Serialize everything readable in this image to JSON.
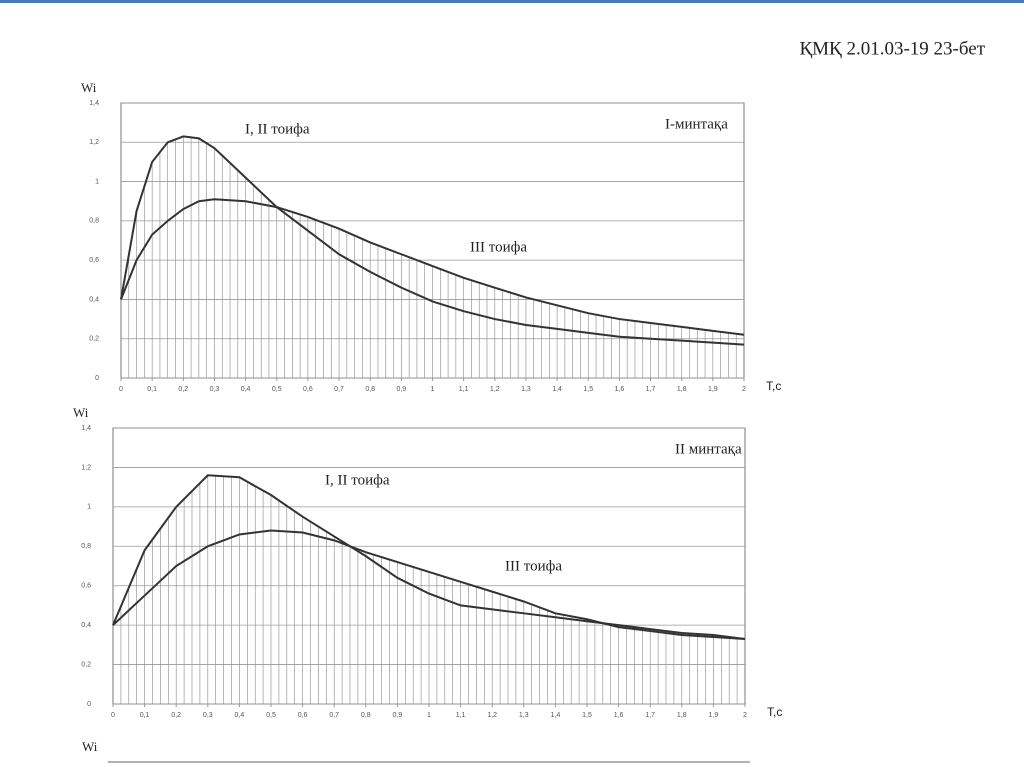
{
  "header": "ҚМҚ 2.01.03-19 23-бет",
  "next_chart_label": "Wi",
  "chart_data": [
    {
      "type": "line",
      "y_label": "Wi",
      "x_label": "T,c",
      "annotations": [
        "I, II тоифа",
        "III тоифа",
        "I-минтақа"
      ],
      "x": [
        0,
        0.05,
        0.1,
        0.15,
        0.2,
        0.25,
        0.3,
        0.4,
        0.5,
        0.6,
        0.7,
        0.8,
        0.9,
        1.0,
        1.1,
        1.2,
        1.3,
        1.4,
        1.5,
        1.6,
        1.7,
        1.8,
        1.9,
        2.0
      ],
      "series": [
        {
          "name": "I, II тоифа",
          "color": "#333333",
          "values": [
            0.4,
            0.85,
            1.1,
            1.2,
            1.23,
            1.22,
            1.17,
            1.02,
            0.87,
            0.75,
            0.63,
            0.54,
            0.46,
            0.39,
            0.34,
            0.3,
            0.27,
            0.25,
            0.23,
            0.21,
            0.2,
            0.19,
            0.18,
            0.17
          ]
        },
        {
          "name": "III тоифа",
          "color": "#333333",
          "values": [
            0.4,
            0.6,
            0.73,
            0.8,
            0.86,
            0.9,
            0.91,
            0.9,
            0.87,
            0.82,
            0.76,
            0.69,
            0.63,
            0.57,
            0.51,
            0.46,
            0.41,
            0.37,
            0.33,
            0.3,
            0.28,
            0.26,
            0.24,
            0.22
          ]
        }
      ],
      "xlim": [
        0,
        2
      ],
      "xticks": [
        0,
        {
          "value": 0.1,
          "label": "0,1"
        },
        {
          "value": 0.2,
          "label": "0,2"
        },
        {
          "value": 0.3,
          "label": "0,3"
        },
        {
          "value": 0.4,
          "label": "0,4"
        },
        {
          "value": 0.5,
          "label": "0,5"
        },
        {
          "value": 0.6,
          "label": "0,6"
        },
        {
          "value": 0.7,
          "label": "0,7"
        },
        {
          "value": 0.8,
          "label": "0,8"
        },
        {
          "value": 0.9,
          "label": "0,9"
        },
        1,
        {
          "value": 1.1,
          "label": "1,1"
        },
        {
          "value": 1.2,
          "label": "1,2"
        },
        {
          "value": 1.3,
          "label": "1,3"
        },
        {
          "value": 1.4,
          "label": "1,4"
        },
        {
          "value": 1.5,
          "label": "1,5"
        },
        {
          "value": 1.6,
          "label": "1,6"
        },
        {
          "value": 1.7,
          "label": "1,7"
        },
        {
          "value": 1.8,
          "label": "1,8"
        },
        {
          "value": 1.9,
          "label": "1,9"
        },
        2
      ],
      "ylim": [
        0,
        1.4
      ],
      "yticks": [
        0,
        {
          "value": 0.2,
          "label": "0,2"
        },
        {
          "value": 0.4,
          "label": "0,4"
        },
        {
          "value": 0.6,
          "label": "0,6"
        },
        {
          "value": 0.8,
          "label": "0,8"
        },
        1,
        {
          "value": 1.2,
          "label": "1,2"
        },
        {
          "value": 1.4,
          "label": "1,4"
        }
      ],
      "grid": true
    },
    {
      "type": "line",
      "y_label": "Wi",
      "x_label": "T,c",
      "annotations": [
        "I, II тоифа",
        "III тоифа",
        "II минтақа"
      ],
      "x": [
        0,
        0.1,
        0.2,
        0.3,
        0.4,
        0.5,
        0.6,
        0.7,
        0.8,
        0.9,
        1.0,
        1.1,
        1.2,
        1.3,
        1.4,
        1.5,
        1.6,
        1.7,
        1.8,
        1.9,
        2.0
      ],
      "series": [
        {
          "name": "I, II тоифа",
          "color": "#333333",
          "values": [
            0.4,
            0.78,
            1.0,
            1.16,
            1.15,
            1.06,
            0.95,
            0.85,
            0.75,
            0.64,
            0.56,
            0.5,
            0.48,
            0.46,
            0.44,
            0.42,
            0.4,
            0.38,
            0.36,
            0.35,
            0.33
          ]
        },
        {
          "name": "III тоифа",
          "color": "#333333",
          "values": [
            0.4,
            0.55,
            0.7,
            0.8,
            0.86,
            0.88,
            0.87,
            0.83,
            0.77,
            0.72,
            0.67,
            0.62,
            0.57,
            0.52,
            0.46,
            0.43,
            0.39,
            0.37,
            0.35,
            0.34,
            0.33
          ]
        }
      ],
      "xlim": [
        0,
        2
      ],
      "xticks": [
        0,
        {
          "value": 0.1,
          "label": "0,1"
        },
        {
          "value": 0.2,
          "label": "0,2"
        },
        {
          "value": 0.3,
          "label": "0,3"
        },
        {
          "value": 0.4,
          "label": "0,4"
        },
        {
          "value": 0.5,
          "label": "0,5"
        },
        {
          "value": 0.6,
          "label": "0,6"
        },
        {
          "value": 0.7,
          "label": "0,7"
        },
        {
          "value": 0.8,
          "label": "0,8"
        },
        {
          "value": 0.9,
          "label": "0,9"
        },
        1,
        {
          "value": 1.1,
          "label": "1,1"
        },
        {
          "value": 1.2,
          "label": "1,2"
        },
        {
          "value": 1.3,
          "label": "1,3"
        },
        {
          "value": 1.4,
          "label": "1,4"
        },
        {
          "value": 1.5,
          "label": "1,5"
        },
        {
          "value": 1.6,
          "label": "1,6"
        },
        {
          "value": 1.7,
          "label": "1,7"
        },
        {
          "value": 1.8,
          "label": "1,8"
        },
        {
          "value": 1.9,
          "label": "1,9"
        },
        2
      ],
      "ylim": [
        0,
        1.4
      ],
      "yticks": [
        0,
        {
          "value": 0.2,
          "label": "0,2"
        },
        {
          "value": 0.4,
          "label": "0,4"
        },
        {
          "value": 0.6,
          "label": "0,6"
        },
        {
          "value": 0.8,
          "label": "0,8"
        },
        1,
        {
          "value": 1.2,
          "label": "1,2"
        },
        {
          "value": 1.4,
          "label": "1,4"
        }
      ],
      "grid": true
    }
  ]
}
